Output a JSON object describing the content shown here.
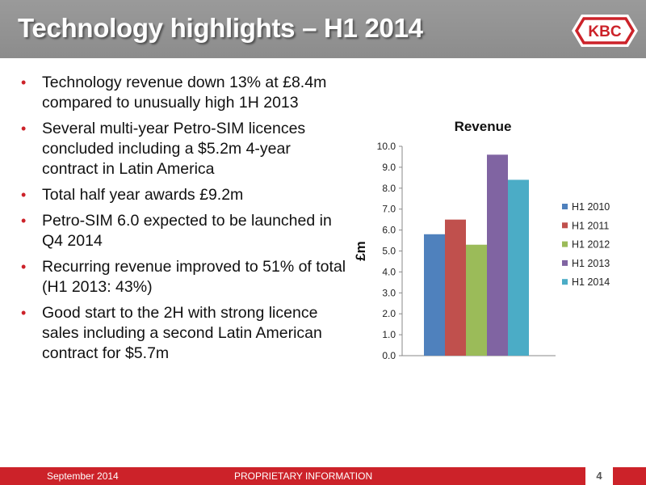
{
  "slide": {
    "title": "Technology highlights – H1 2014",
    "logo_text": "KBC",
    "bullets": [
      "Technology revenue down 13% at £8.4m compared to unusually high 1H 2013",
      "Several multi-year Petro-SIM licences concluded including a $5.2m 4-year contract in Latin America",
      "Total half year awards £9.2m",
      "Petro-SIM 6.0 expected to be launched in Q4 2014",
      "Recurring revenue improved to 51% of total (H1 2013: 43%)",
      "Good start to the 2H with strong licence sales including a second Latin American contract for $5.7m"
    ]
  },
  "footer": {
    "date": "September 2014",
    "proprietary": "PROPRIETARY INFORMATION",
    "page_number": "4"
  },
  "colors": {
    "header_gray": "#919191",
    "accent_red": "#cc2229"
  },
  "chart_data": {
    "type": "bar",
    "title": "Revenue",
    "ylabel": "£m",
    "xlabel": "",
    "categories": [
      ""
    ],
    "ylim": [
      0,
      10
    ],
    "y_ticks": [
      "0.0",
      "1.0",
      "2.0",
      "3.0",
      "4.0",
      "5.0",
      "6.0",
      "7.0",
      "8.0",
      "9.0",
      "10.0"
    ],
    "legend_position": "right",
    "grid": false,
    "series": [
      {
        "name": "H1 2010",
        "values": [
          5.8
        ],
        "color": "#4f81bd"
      },
      {
        "name": "H1 2011",
        "values": [
          6.5
        ],
        "color": "#c0504d"
      },
      {
        "name": "H1 2012",
        "values": [
          5.3
        ],
        "color": "#9bbb59"
      },
      {
        "name": "H1 2013",
        "values": [
          9.6
        ],
        "color": "#8064a2"
      },
      {
        "name": "H1 2014",
        "values": [
          8.4
        ],
        "color": "#4bacc6"
      }
    ]
  }
}
